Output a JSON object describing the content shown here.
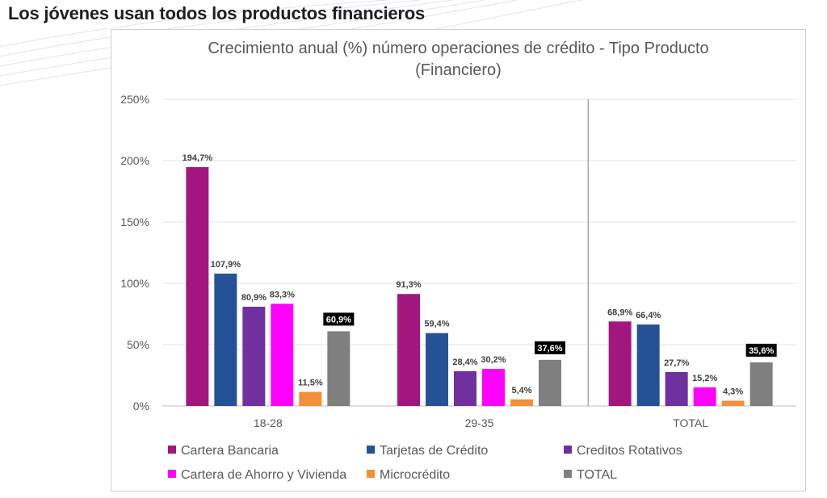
{
  "headline": "Los jóvenes usan todos los productos financieros",
  "chart_data": {
    "type": "bar",
    "title_lines": [
      "Crecimiento anual (%) número operaciones de crédito - Tipo Producto",
      "(Financiero)"
    ],
    "categories": [
      "18-28",
      "29-35",
      "TOTAL"
    ],
    "yticks": [
      "0%",
      "50%",
      "100%",
      "150%",
      "200%",
      "250%"
    ],
    "ylim": [
      0,
      250
    ],
    "legend_position": "bottom",
    "series": [
      {
        "name": "Cartera Bancaria",
        "color": "#A2177F",
        "values": [
          194.7,
          91.3,
          68.9
        ],
        "labels": [
          "194,7%",
          "91,3%",
          "68,9%"
        ]
      },
      {
        "name": "Tarjetas de Crédito",
        "color": "#255297",
        "values": [
          107.9,
          59.4,
          66.4
        ],
        "labels": [
          "107,9%",
          "59,4%",
          "66,4%"
        ]
      },
      {
        "name": "Creditos Rotativos",
        "color": "#7030A0",
        "values": [
          80.9,
          28.4,
          27.7
        ],
        "labels": [
          "80,9%",
          "28,4%",
          "27,7%"
        ]
      },
      {
        "name": "Cartera de Ahorro y Vivienda",
        "color": "#FF00FF",
        "values": [
          83.3,
          30.2,
          15.2
        ],
        "labels": [
          "83,3%",
          "30,2%",
          "15,2%"
        ]
      },
      {
        "name": "Microcrédito",
        "color": "#F0903A",
        "values": [
          11.5,
          5.4,
          4.3
        ],
        "labels": [
          "11,5%",
          "5,4%",
          "4,3%"
        ]
      },
      {
        "name": "TOTAL",
        "color": "#7F7F7F",
        "values": [
          60.9,
          37.6,
          35.6
        ],
        "labels": [
          "60,9%",
          "37,6%",
          "35,6%"
        ],
        "label_style": "inverted"
      }
    ]
  }
}
